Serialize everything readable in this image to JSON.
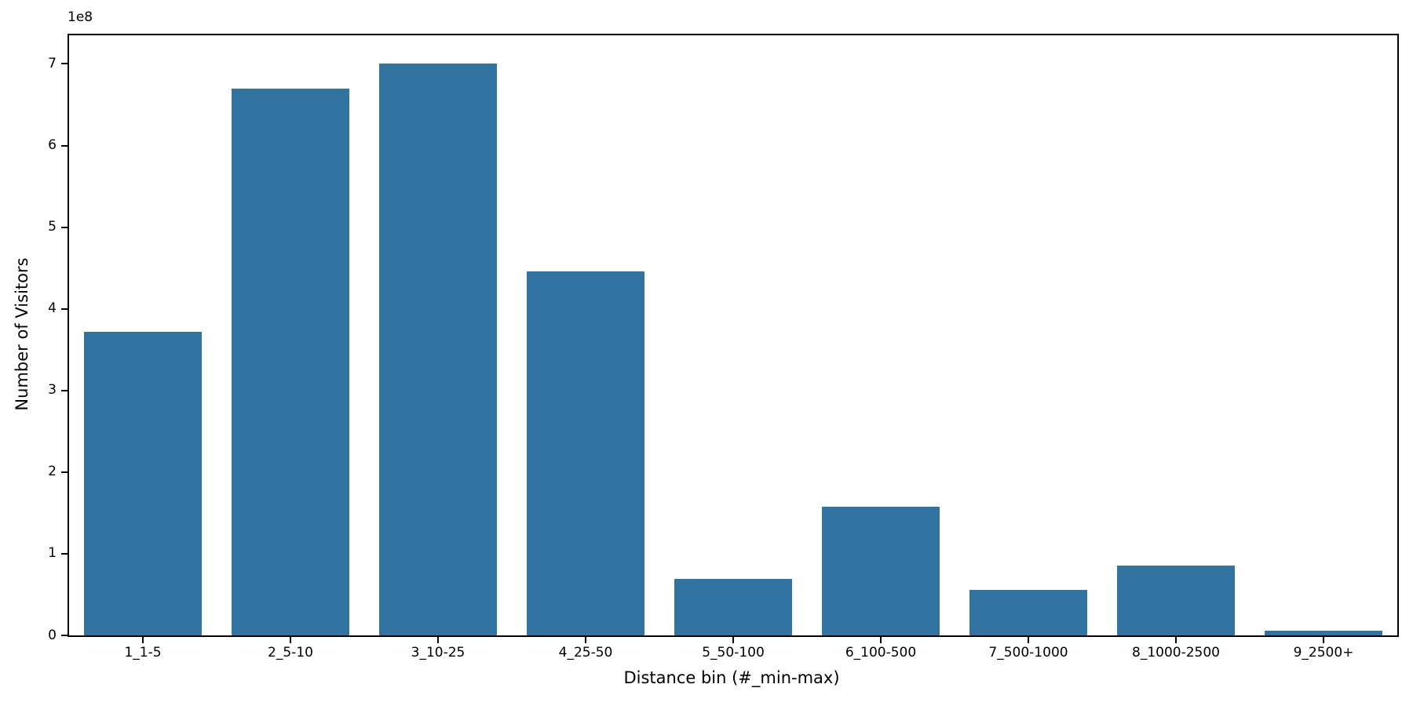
{
  "chart_data": {
    "type": "bar",
    "title": "",
    "xlabel": "Distance bin (#_min-max)",
    "ylabel": "Number of Visitors",
    "offset_text": "1e8",
    "categories": [
      "1_1-5",
      "2_5-10",
      "3_10-25",
      "4_25-50",
      "5_50-100",
      "6_100-500",
      "7_500-1000",
      "8_1000-2500",
      "9_2500+"
    ],
    "values": [
      372000000,
      670000000,
      700000000,
      446000000,
      69000000,
      158000000,
      56000000,
      86000000,
      6000000
    ],
    "bar_color": "#3274a1",
    "axis_color": "#000000",
    "background_color": "#ffffff",
    "ylim": [
      0,
      735000000
    ],
    "xlim_units": [
      -0.5,
      8.5
    ],
    "bar_width_fraction": 0.8,
    "ytick_values": [
      0,
      100000000,
      200000000,
      300000000,
      400000000,
      500000000,
      600000000,
      700000000
    ],
    "ytick_labels": [
      "0",
      "1",
      "2",
      "3",
      "4",
      "5",
      "6",
      "7"
    ],
    "grid": false,
    "legend_position": "none"
  }
}
